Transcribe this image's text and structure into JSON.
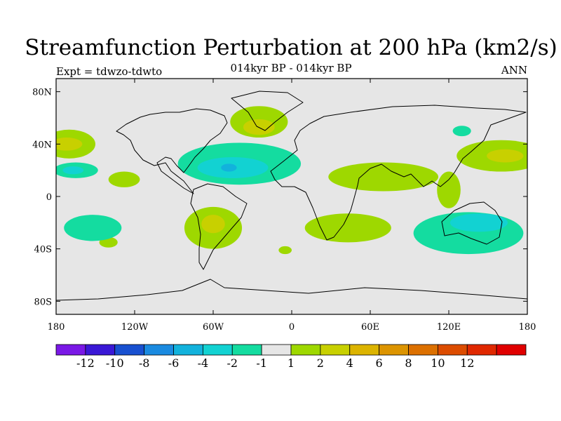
{
  "title": "Streamfunction Perturbation at 200 hPa (km2/s)",
  "subtitle": "014kyr BP - 014kyr BP",
  "expt_label": "Expt = tdwzo-tdwto",
  "season": "ANN",
  "map": {
    "projection": "cylindrical equidistant",
    "lon_range": [
      -180,
      180
    ],
    "lat_range": [
      -90,
      90
    ],
    "background_color": "#e6e6e6",
    "lat_ticks": [
      {
        "value": 80,
        "label": "80N"
      },
      {
        "value": 40,
        "label": "40N"
      },
      {
        "value": 0,
        "label": "0"
      },
      {
        "value": -40,
        "label": "40S"
      },
      {
        "value": -80,
        "label": "80S"
      }
    ],
    "lon_ticks": [
      {
        "value": -180,
        "label": "180"
      },
      {
        "value": -120,
        "label": "120W"
      },
      {
        "value": -60,
        "label": "60W"
      },
      {
        "value": 0,
        "label": "0"
      },
      {
        "value": 60,
        "label": "60E"
      },
      {
        "value": 120,
        "label": "120E"
      },
      {
        "value": 180,
        "label": "180"
      }
    ]
  },
  "colorbar": {
    "colors": [
      "#7a18e6",
      "#3a18d6",
      "#1850d0",
      "#1a8ae0",
      "#12b2dc",
      "#12d2d2",
      "#14dca0",
      "#e6e6e6",
      "#9ed800",
      "#c8d000",
      "#dcb400",
      "#dc9400",
      "#dc7000",
      "#dc4c00",
      "#e02800",
      "#e00000"
    ],
    "labels": [
      "-12",
      "-10",
      "-8",
      "-6",
      "-4",
      "-2",
      "-1",
      "1",
      "2",
      "4",
      "6",
      "8",
      "10",
      "12"
    ]
  },
  "anomalies": [
    {
      "name": "n-atlantic-2",
      "level": "2",
      "lon": -25,
      "lat": 57,
      "rx": 22,
      "ry": 12,
      "color": "#9ed800"
    },
    {
      "name": "n-atlantic-4",
      "level": "4",
      "lon": -25,
      "lat": 53,
      "rx": 12,
      "ry": 6,
      "color": "#c8d000"
    },
    {
      "name": "n-pacific-2",
      "level": "2",
      "lon": -170,
      "lat": 40,
      "rx": 20,
      "ry": 11,
      "color": "#9ed800"
    },
    {
      "name": "n-pacific-4",
      "level": "4",
      "lon": -172,
      "lat": 40,
      "rx": 12,
      "ry": 5,
      "color": "#c8d000"
    },
    {
      "name": "nw-pacific-2",
      "level": "2",
      "lon": 160,
      "lat": 31,
      "rx": 34,
      "ry": 12,
      "color": "#9ed800"
    },
    {
      "name": "nw-pacific-4",
      "level": "4",
      "lon": 163,
      "lat": 31,
      "rx": 14,
      "ry": 5,
      "color": "#c8d000"
    },
    {
      "name": "s-america-2",
      "level": "2",
      "lon": -60,
      "lat": -24,
      "rx": 22,
      "ry": 16,
      "color": "#9ed800"
    },
    {
      "name": "s-america-4",
      "level": "4",
      "lon": -60,
      "lat": -21,
      "rx": 9,
      "ry": 7,
      "color": "#c8d000"
    },
    {
      "name": "s-atlantic-2",
      "level": "2",
      "lon": -5,
      "lat": -41,
      "rx": 5,
      "ry": 3,
      "color": "#9ed800"
    },
    {
      "name": "c-pacific-2",
      "level": "2",
      "lon": -128,
      "lat": 13,
      "rx": 12,
      "ry": 6,
      "color": "#9ed800"
    },
    {
      "name": "s-pacific-2",
      "level": "2",
      "lon": -140,
      "lat": -35,
      "rx": 7,
      "ry": 4,
      "color": "#9ed800"
    },
    {
      "name": "n-pacific-neg1",
      "level": "-1",
      "lon": -165,
      "lat": 20,
      "rx": 17,
      "ry": 6,
      "color": "#14dca0"
    },
    {
      "name": "n-pacific-neg2",
      "level": "-2",
      "lon": -167,
      "lat": 20,
      "rx": 8,
      "ry": 3,
      "color": "#12d2d2"
    },
    {
      "name": "atlantic-neg1",
      "level": "-1",
      "lon": -40,
      "lat": 25,
      "rx": 47,
      "ry": 16,
      "color": "#14dca0"
    },
    {
      "name": "atlantic-neg2",
      "level": "-2",
      "lon": -45,
      "lat": 22,
      "rx": 27,
      "ry": 8,
      "color": "#12d2d2"
    },
    {
      "name": "atlantic-neg4",
      "level": "-4",
      "lon": -48,
      "lat": 22,
      "rx": 6,
      "ry": 3,
      "color": "#12b2dc"
    },
    {
      "name": "siberia-neg1",
      "level": "-1",
      "lon": 130,
      "lat": 50,
      "rx": 7,
      "ry": 4,
      "color": "#14dca0"
    },
    {
      "name": "s-pacific-neg1",
      "level": "-1",
      "lon": -152,
      "lat": -24,
      "rx": 22,
      "ry": 10,
      "color": "#14dca0"
    },
    {
      "name": "australia-neg1",
      "level": "-1",
      "lon": 135,
      "lat": -28,
      "rx": 42,
      "ry": 16,
      "color": "#14dca0"
    },
    {
      "name": "australia-neg2",
      "level": "-2",
      "lon": 143,
      "lat": -20,
      "rx": 22,
      "ry": 7,
      "color": "#12d2d2"
    },
    {
      "name": "s-indian-2",
      "level": "2",
      "lon": 43,
      "lat": -24,
      "rx": 33,
      "ry": 11,
      "color": "#9ed800"
    },
    {
      "name": "tropical-band-2",
      "level": "2",
      "lon": 70,
      "lat": 15,
      "rx": 42,
      "ry": 11,
      "color": "#9ed800"
    },
    {
      "name": "w-pacific-2",
      "level": "2",
      "lon": 120,
      "lat": 5,
      "rx": 9,
      "ry": 14,
      "color": "#9ed800"
    }
  ]
}
